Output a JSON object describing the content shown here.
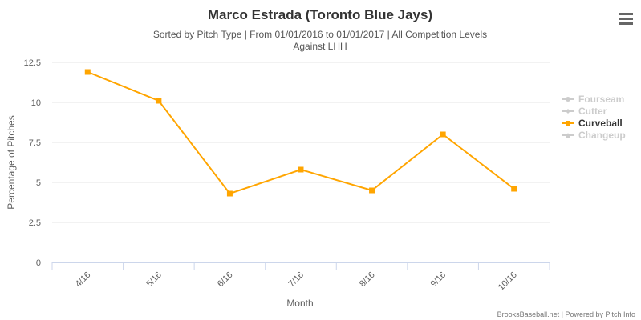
{
  "chart_data": {
    "type": "line",
    "title": "Marco Estrada (Toronto Blue Jays)",
    "subtitle": [
      "Sorted by Pitch Type | From 01/01/2016 to 01/01/2017 | All Competition Levels",
      "Against LHH"
    ],
    "ylabel": "Percentage of Pitches",
    "xlabel": "Month",
    "credits": "BrooksBaseball.net | Powered by Pitch Info",
    "categories": [
      "4/16",
      "5/16",
      "6/16",
      "7/16",
      "8/16",
      "9/16",
      "10/16"
    ],
    "series": [
      {
        "name": "Fourseam",
        "color": "#cccccc",
        "marker": "circle",
        "visible": false,
        "values": [
          null,
          null,
          null,
          null,
          null,
          null,
          null
        ]
      },
      {
        "name": "Cutter",
        "color": "#cccccc",
        "marker": "diamond",
        "visible": false,
        "values": [
          null,
          null,
          null,
          null,
          null,
          null,
          null
        ]
      },
      {
        "name": "Curveball",
        "color": "#ffa500",
        "marker": "square",
        "visible": true,
        "values": [
          11.9,
          10.1,
          4.3,
          5.8,
          4.5,
          8.0,
          4.6
        ]
      },
      {
        "name": "Changeup",
        "color": "#cccccc",
        "marker": "triangle",
        "visible": false,
        "values": [
          null,
          null,
          null,
          null,
          null,
          null,
          null
        ]
      }
    ],
    "ylim": [
      0,
      12.5
    ],
    "yticks": [
      0,
      2.5,
      5,
      7.5,
      10,
      12.5
    ],
    "grid": true,
    "legend": "right"
  }
}
